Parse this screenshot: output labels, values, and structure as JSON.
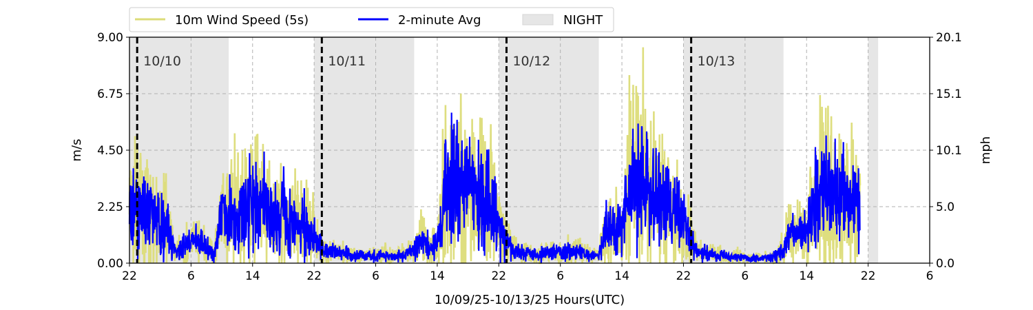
{
  "chart_data": {
    "type": "line",
    "xlabel": "10/09/25-10/13/25  Hours(UTC)",
    "ylabel": "m/s",
    "ylabel_right": "mph",
    "ylim": [
      0,
      9
    ],
    "xlim_hours": [
      0,
      104
    ],
    "x_tick_labels": [
      "22",
      "6",
      "14",
      "22",
      "6",
      "14",
      "22",
      "6",
      "14",
      "22",
      "6",
      "14",
      "22",
      "6"
    ],
    "y_ticks": [
      "0.00",
      "2.25",
      "4.50",
      "6.75",
      "9.00"
    ],
    "y_ticks_right": [
      "0.0",
      "5.0",
      "10.1",
      "15.1",
      "20.1"
    ],
    "grid": true,
    "legend_position": "top-left above plot",
    "legend": [
      "10m Wind Speed (5s)",
      "2-minute Avg",
      "NIGHT"
    ],
    "night_periods_hours": [
      [
        0,
        12.9
      ],
      [
        24,
        37
      ],
      [
        48,
        61
      ],
      [
        72,
        85
      ],
      [
        96,
        97.3
      ]
    ],
    "day_markers": [
      {
        "hour": 1,
        "label": "10/10"
      },
      {
        "hour": 25,
        "label": "10/11"
      },
      {
        "hour": 49,
        "label": "10/12"
      },
      {
        "hour": 73,
        "label": "10/13"
      }
    ],
    "series": [
      {
        "name": "2-minute Avg",
        "color": "#0000ff",
        "hourly_mean_ms": [
          2.0,
          2.2,
          2.0,
          1.9,
          1.8,
          1.3,
          0.4,
          0.6,
          0.8,
          0.9,
          0.6,
          0.4,
          1.8,
          2.0,
          1.8,
          2.2,
          2.5,
          2.4,
          2.0,
          1.8,
          2.0,
          1.6,
          1.4,
          1.5,
          1.1,
          0.6,
          0.5,
          0.4,
          0.4,
          0.3,
          0.3,
          0.3,
          0.3,
          0.3,
          0.3,
          0.3,
          0.4,
          0.5,
          0.9,
          0.6,
          0.8,
          3.0,
          3.2,
          3.0,
          2.8,
          2.7,
          2.6,
          2.4,
          1.5,
          0.8,
          0.5,
          0.4,
          0.4,
          0.3,
          0.4,
          0.5,
          0.4,
          0.5,
          0.5,
          0.4,
          0.3,
          0.3,
          1.5,
          1.4,
          1.3,
          3.0,
          3.3,
          3.1,
          2.9,
          2.6,
          2.3,
          2.0,
          1.5,
          0.9,
          0.4,
          0.4,
          0.3,
          0.3,
          0.2,
          0.3,
          0.2,
          0.2,
          0.2,
          0.2,
          0.3,
          0.6,
          1.2,
          1.1,
          1.3,
          2.5,
          2.9,
          2.7,
          2.5,
          2.4,
          2.3
        ]
      },
      {
        "name": "10m Wind Speed (5s)",
        "color": "#dcdc78"
      }
    ]
  }
}
